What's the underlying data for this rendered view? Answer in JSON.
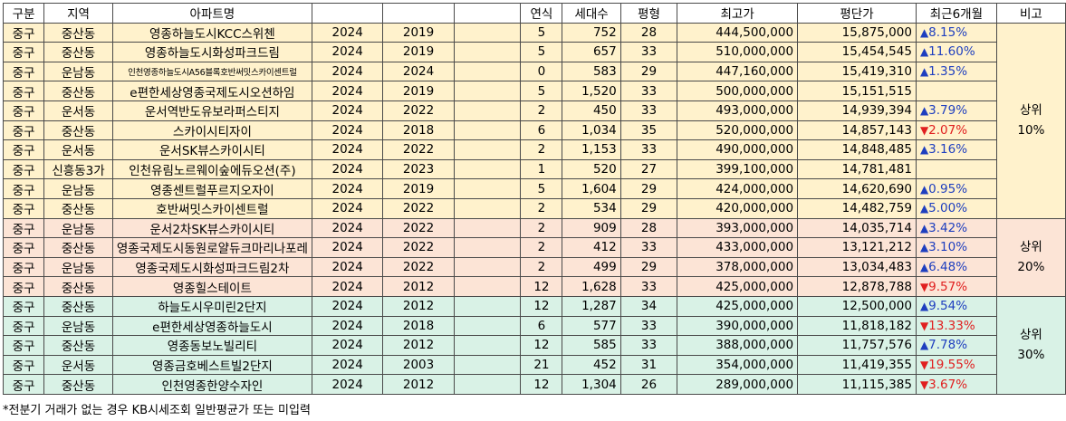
{
  "headers": [
    "구분",
    "지역",
    "아파트명",
    "",
    "",
    "",
    "연식",
    "세대수",
    "평형",
    "최고가",
    "평단가",
    "최근6개월",
    "비고"
  ],
  "rows": [
    {
      "gu": "중구",
      "dong": "중산동",
      "name": "영종하늘도시KCC스위첸",
      "y1": "2024",
      "y2": "2019",
      "age": "5",
      "units": "752",
      "size": "28",
      "max": "444,500,000",
      "ppp": "15,875,000",
      "chg": "8.15%",
      "dir": "up",
      "tier": "t10"
    },
    {
      "gu": "중구",
      "dong": "중산동",
      "name": "영종하늘도시화성파크드림",
      "y1": "2024",
      "y2": "2019",
      "age": "5",
      "units": "657",
      "size": "33",
      "max": "510,000,000",
      "ppp": "15,454,545",
      "chg": "11.60%",
      "dir": "up",
      "tier": "t10"
    },
    {
      "gu": "중구",
      "dong": "운남동",
      "name": "인천영종하늘도시A56블록호반써밋스카이센트럴",
      "y1": "2024",
      "y2": "2024",
      "age": "0",
      "units": "583",
      "size": "29",
      "max": "447,160,000",
      "ppp": "15,419,310",
      "chg": "1.35%",
      "dir": "up",
      "tier": "t10",
      "small": true
    },
    {
      "gu": "중구",
      "dong": "중산동",
      "name": "e편한세상영종국제도시오션하임",
      "y1": "2024",
      "y2": "2019",
      "age": "5",
      "units": "1,520",
      "size": "33",
      "max": "500,000,000",
      "ppp": "15,151,515",
      "chg": "",
      "dir": "",
      "tier": "t10"
    },
    {
      "gu": "중구",
      "dong": "운서동",
      "name": "운서역반도유보라퍼스티지",
      "y1": "2024",
      "y2": "2022",
      "age": "2",
      "units": "450",
      "size": "33",
      "max": "493,000,000",
      "ppp": "14,939,394",
      "chg": "3.79%",
      "dir": "up",
      "tier": "t10"
    },
    {
      "gu": "중구",
      "dong": "중산동",
      "name": "스카이시티자이",
      "y1": "2024",
      "y2": "2018",
      "age": "6",
      "units": "1,034",
      "size": "35",
      "max": "520,000,000",
      "ppp": "14,857,143",
      "chg": "2.07%",
      "dir": "down",
      "tier": "t10"
    },
    {
      "gu": "중구",
      "dong": "운서동",
      "name": "운서SK뷰스카이시티",
      "y1": "2024",
      "y2": "2022",
      "age": "2",
      "units": "1,153",
      "size": "33",
      "max": "490,000,000",
      "ppp": "14,848,485",
      "chg": "3.16%",
      "dir": "up",
      "tier": "t10"
    },
    {
      "gu": "중구",
      "dong": "신흥동3가",
      "name": "인천유림노르웨이숲에듀오션(주)",
      "y1": "2024",
      "y2": "2023",
      "age": "1",
      "units": "520",
      "size": "27",
      "max": "399,100,000",
      "ppp": "14,781,481",
      "chg": "",
      "dir": "",
      "tier": "t10"
    },
    {
      "gu": "중구",
      "dong": "운남동",
      "name": "영종센트럴푸르지오자이",
      "y1": "2024",
      "y2": "2019",
      "age": "5",
      "units": "1,604",
      "size": "29",
      "max": "424,000,000",
      "ppp": "14,620,690",
      "chg": "0.95%",
      "dir": "up",
      "tier": "t10"
    },
    {
      "gu": "중구",
      "dong": "중산동",
      "name": "호반써밋스카이센트럴",
      "y1": "2024",
      "y2": "2022",
      "age": "2",
      "units": "534",
      "size": "29",
      "max": "420,000,000",
      "ppp": "14,482,759",
      "chg": "5.00%",
      "dir": "up",
      "tier": "t10"
    },
    {
      "gu": "중구",
      "dong": "운남동",
      "name": "운서2차SK뷰스카이시티",
      "y1": "2024",
      "y2": "2022",
      "age": "2",
      "units": "909",
      "size": "28",
      "max": "393,000,000",
      "ppp": "14,035,714",
      "chg": "3.42%",
      "dir": "up",
      "tier": "t20"
    },
    {
      "gu": "중구",
      "dong": "중산동",
      "name": "영종국제도시동원로얄듀크마리나포레",
      "y1": "2024",
      "y2": "2022",
      "age": "2",
      "units": "412",
      "size": "33",
      "max": "433,000,000",
      "ppp": "13,121,212",
      "chg": "3.10%",
      "dir": "up",
      "tier": "t20"
    },
    {
      "gu": "중구",
      "dong": "운남동",
      "name": "영종국제도시화성파크드림2차",
      "y1": "2024",
      "y2": "2022",
      "age": "2",
      "units": "499",
      "size": "29",
      "max": "378,000,000",
      "ppp": "13,034,483",
      "chg": "6.48%",
      "dir": "up",
      "tier": "t20"
    },
    {
      "gu": "중구",
      "dong": "중산동",
      "name": "영종힐스테이트",
      "y1": "2024",
      "y2": "2012",
      "age": "12",
      "units": "1,628",
      "size": "33",
      "max": "425,000,000",
      "ppp": "12,878,788",
      "chg": "9.57%",
      "dir": "down",
      "tier": "t20"
    },
    {
      "gu": "중구",
      "dong": "중산동",
      "name": "하늘도시우미린2단지",
      "y1": "2024",
      "y2": "2012",
      "age": "12",
      "units": "1,287",
      "size": "34",
      "max": "425,000,000",
      "ppp": "12,500,000",
      "chg": "9.54%",
      "dir": "up",
      "tier": "t30"
    },
    {
      "gu": "중구",
      "dong": "운남동",
      "name": "e편한세상영종하늘도시",
      "y1": "2024",
      "y2": "2018",
      "age": "6",
      "units": "577",
      "size": "33",
      "max": "390,000,000",
      "ppp": "11,818,182",
      "chg": "13.33%",
      "dir": "down",
      "tier": "t30"
    },
    {
      "gu": "중구",
      "dong": "중산동",
      "name": "영종동보노빌리티",
      "y1": "2024",
      "y2": "2012",
      "age": "12",
      "units": "585",
      "size": "33",
      "max": "388,000,000",
      "ppp": "11,757,576",
      "chg": "7.78%",
      "dir": "up",
      "tier": "t30"
    },
    {
      "gu": "중구",
      "dong": "운서동",
      "name": "영종금호베스트빌2단지",
      "y1": "2024",
      "y2": "2003",
      "age": "21",
      "units": "452",
      "size": "31",
      "max": "354,000,000",
      "ppp": "11,419,355",
      "chg": "19.55%",
      "dir": "down",
      "tier": "t30"
    },
    {
      "gu": "중구",
      "dong": "중산동",
      "name": "인천영종한양수자인",
      "y1": "2024",
      "y2": "2012",
      "age": "12",
      "units": "1,304",
      "size": "26",
      "max": "289,000,000",
      "ppp": "11,115,385",
      "chg": "3.67%",
      "dir": "down",
      "tier": "t30"
    }
  ],
  "tiers": [
    {
      "label_line1": "상위",
      "label_line2": "10%",
      "rows": 10
    },
    {
      "label_line1": "상위",
      "label_line2": "20%",
      "rows": 4
    },
    {
      "label_line1": "상위",
      "label_line2": "30%",
      "rows": 5
    }
  ],
  "arrows": {
    "up": "▲",
    "down": "▼"
  },
  "colors": {
    "up": "#1f3fbf",
    "down": "#e02020",
    "tier10": "#fff2cc",
    "tier20": "#fce4d6",
    "tier30": "#d9f2e6"
  },
  "footnote": "*전분기 거래가 없는 경우 KB시세조회 일반평균가 또는 미입력"
}
